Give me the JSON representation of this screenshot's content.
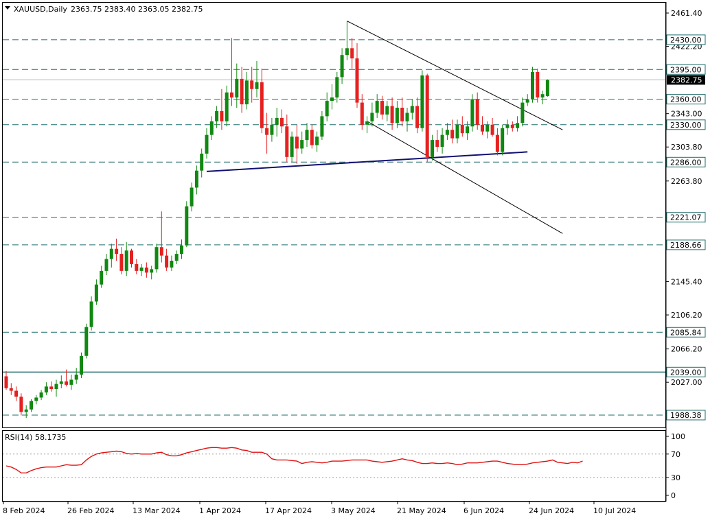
{
  "header": {
    "symbol": "XAUUSD,Daily",
    "ohlc": "2363.75 2383.40 2363.05 2382.75"
  },
  "rsi_header": {
    "label": "RSI(14) 58.1735"
  },
  "colors": {
    "bull": "#118811",
    "bear": "#e52020",
    "level": "#1f6b6b",
    "support": "#101070",
    "rsi": "#e01010",
    "grid": "#000000"
  },
  "chart_data": [
    {
      "type": "candlestick",
      "title": "XAUUSD,Daily",
      "ylim": [
        1975,
        2472
      ],
      "y_ticks": [
        "2461.40",
        "2422.20",
        "2343.00",
        "2303.80",
        "2263.80",
        "2145.40",
        "2106.20",
        "2066.20",
        "2027.00"
      ],
      "x_labels": [
        "8 Feb 2024",
        "26 Feb 2024",
        "13 Mar 2024",
        "1 Apr 2024",
        "17 Apr 2024",
        "3 May 2024",
        "21 May 2024",
        "6 Jun 2024",
        "24 Jun 2024",
        "10 Jul 2024"
      ],
      "current_price": "2382.75",
      "levels": [
        {
          "label": "2430.00",
          "value": 2430.0
        },
        {
          "label": "2395.00",
          "value": 2395.0
        },
        {
          "label": "2360.00",
          "value": 2360.0
        },
        {
          "label": "2330.00",
          "value": 2330.0
        },
        {
          "label": "2286.00",
          "value": 2286.0
        },
        {
          "label": "2221.07",
          "value": 2221.07
        },
        {
          "label": "2188.66",
          "value": 2188.66
        },
        {
          "label": "2085.84",
          "value": 2085.84
        },
        {
          "label": "2039.00",
          "value": 2039.0
        },
        {
          "label": "1988.38",
          "value": 1988.38
        }
      ],
      "candles": [
        [
          2034,
          2040,
          2018,
          2020
        ],
        [
          2020,
          2026,
          2012,
          2017
        ],
        [
          2017,
          2022,
          2005,
          2010
        ],
        [
          2010,
          2014,
          1988,
          1992
        ],
        [
          1992,
          2000,
          1985,
          1995
        ],
        [
          1995,
          2007,
          1992,
          2005
        ],
        [
          2005,
          2012,
          2001,
          2009
        ],
        [
          2009,
          2018,
          2006,
          2015
        ],
        [
          2015,
          2027,
          2012,
          2022
        ],
        [
          2022,
          2028,
          2016,
          2019
        ],
        [
          2019,
          2030,
          2010,
          2025
        ],
        [
          2025,
          2035,
          2020,
          2028
        ],
        [
          2028,
          2042,
          2022,
          2024
        ],
        [
          2024,
          2036,
          2018,
          2030
        ],
        [
          2030,
          2044,
          2025,
          2036
        ],
        [
          2036,
          2062,
          2032,
          2058
        ],
        [
          2058,
          2096,
          2055,
          2092
        ],
        [
          2092,
          2128,
          2088,
          2122
        ],
        [
          2122,
          2148,
          2118,
          2142
        ],
        [
          2142,
          2164,
          2138,
          2158
        ],
        [
          2158,
          2178,
          2153,
          2172
        ],
        [
          2172,
          2190,
          2162,
          2184
        ],
        [
          2184,
          2196,
          2170,
          2178
        ],
        [
          2178,
          2186,
          2154,
          2158
        ],
        [
          2158,
          2192,
          2152,
          2182
        ],
        [
          2182,
          2184,
          2162,
          2166
        ],
        [
          2166,
          2172,
          2154,
          2158
        ],
        [
          2158,
          2166,
          2152,
          2162
        ],
        [
          2162,
          2168,
          2150,
          2156
        ],
        [
          2156,
          2164,
          2148,
          2160
        ],
        [
          2160,
          2190,
          2156,
          2186
        ],
        [
          2186,
          2228,
          2168,
          2176
        ],
        [
          2176,
          2184,
          2158,
          2162
        ],
        [
          2162,
          2176,
          2158,
          2170
        ],
        [
          2170,
          2182,
          2166,
          2178
        ],
        [
          2178,
          2195,
          2172,
          2188
        ],
        [
          2188,
          2240,
          2186,
          2234
        ],
        [
          2234,
          2262,
          2228,
          2256
        ],
        [
          2256,
          2282,
          2248,
          2276
        ],
        [
          2276,
          2302,
          2268,
          2296
        ],
        [
          2296,
          2326,
          2290,
          2318
        ],
        [
          2318,
          2340,
          2312,
          2334
        ],
        [
          2334,
          2352,
          2326,
          2346
        ],
        [
          2346,
          2372,
          2324,
          2334
        ],
        [
          2334,
          2376,
          2328,
          2368
        ],
        [
          2368,
          2432,
          2352,
          2362
        ],
        [
          2362,
          2402,
          2350,
          2384
        ],
        [
          2384,
          2398,
          2344,
          2354
        ],
        [
          2354,
          2392,
          2348,
          2382
        ],
        [
          2382,
          2398,
          2356,
          2372
        ],
        [
          2372,
          2405,
          2362,
          2380
        ],
        [
          2380,
          2396,
          2320,
          2326
        ],
        [
          2326,
          2344,
          2296,
          2318
        ],
        [
          2318,
          2338,
          2310,
          2330
        ],
        [
          2330,
          2350,
          2316,
          2338
        ],
        [
          2338,
          2348,
          2320,
          2328
        ],
        [
          2328,
          2342,
          2286,
          2292
        ],
        [
          2292,
          2322,
          2286,
          2316
        ],
        [
          2316,
          2330,
          2284,
          2302
        ],
        [
          2302,
          2322,
          2296,
          2312
        ],
        [
          2312,
          2332,
          2304,
          2324
        ],
        [
          2324,
          2330,
          2302,
          2306
        ],
        [
          2306,
          2322,
          2298,
          2316
        ],
        [
          2316,
          2346,
          2312,
          2340
        ],
        [
          2340,
          2368,
          2334,
          2358
        ],
        [
          2358,
          2378,
          2348,
          2362
        ],
        [
          2362,
          2392,
          2356,
          2386
        ],
        [
          2386,
          2420,
          2378,
          2412
        ],
        [
          2412,
          2452,
          2406,
          2420
        ],
        [
          2420,
          2432,
          2396,
          2408
        ],
        [
          2408,
          2426,
          2350,
          2356
        ],
        [
          2356,
          2366,
          2324,
          2330
        ],
        [
          2330,
          2340,
          2320,
          2334
        ],
        [
          2334,
          2356,
          2328,
          2344
        ],
        [
          2344,
          2366,
          2338,
          2358
        ],
        [
          2358,
          2364,
          2336,
          2342
        ],
        [
          2342,
          2358,
          2334,
          2352
        ],
        [
          2352,
          2362,
          2324,
          2332
        ],
        [
          2332,
          2358,
          2326,
          2350
        ],
        [
          2350,
          2362,
          2328,
          2334
        ],
        [
          2334,
          2350,
          2322,
          2344
        ],
        [
          2344,
          2360,
          2336,
          2352
        ],
        [
          2352,
          2362,
          2320,
          2326
        ],
        [
          2326,
          2394,
          2322,
          2388
        ],
        [
          2388,
          2390,
          2286,
          2292
        ],
        [
          2292,
          2318,
          2288,
          2312
        ],
        [
          2312,
          2324,
          2298,
          2304
        ],
        [
          2304,
          2326,
          2296,
          2318
        ],
        [
          2318,
          2332,
          2312,
          2324
        ],
        [
          2324,
          2336,
          2308,
          2314
        ],
        [
          2314,
          2336,
          2308,
          2330
        ],
        [
          2330,
          2340,
          2316,
          2320
        ],
        [
          2320,
          2334,
          2312,
          2328
        ],
        [
          2328,
          2366,
          2322,
          2360
        ],
        [
          2360,
          2368,
          2324,
          2330
        ],
        [
          2330,
          2340,
          2318,
          2322
        ],
        [
          2322,
          2334,
          2314,
          2330
        ],
        [
          2330,
          2338,
          2316,
          2318
        ],
        [
          2318,
          2326,
          2294,
          2298
        ],
        [
          2298,
          2330,
          2294,
          2326
        ],
        [
          2326,
          2336,
          2318,
          2330
        ],
        [
          2330,
          2334,
          2322,
          2326
        ],
        [
          2326,
          2340,
          2322,
          2332
        ],
        [
          2332,
          2362,
          2328,
          2356
        ],
        [
          2356,
          2366,
          2352,
          2360
        ],
        [
          2360,
          2398,
          2356,
          2392
        ],
        [
          2392,
          2396,
          2356,
          2362
        ],
        [
          2362,
          2370,
          2354,
          2366
        ],
        [
          2363.75,
          2383.4,
          2363.05,
          2382.75
        ]
      ],
      "trendlines": [
        {
          "name": "channel-upper",
          "from": [
            68,
            2452
          ],
          "to": [
            111,
            2324
          ]
        },
        {
          "name": "channel-lower",
          "from": [
            72,
            2334
          ],
          "to": [
            111,
            2202
          ]
        },
        {
          "name": "support-line",
          "from": [
            40,
            2275
          ],
          "to": [
            104,
            2298
          ]
        }
      ]
    },
    {
      "type": "line",
      "title": "RSI(14) 58.1735",
      "ylim": [
        0,
        100
      ],
      "y_ticks": [
        "100",
        "70",
        "30",
        "0"
      ],
      "levels": [
        70,
        30
      ],
      "values": [
        50,
        48,
        44,
        38,
        38,
        42,
        45,
        47,
        48,
        48,
        48,
        50,
        52,
        51,
        51,
        52,
        60,
        66,
        70,
        72,
        73,
        74,
        75,
        74,
        71,
        70,
        71,
        70,
        70,
        70,
        72,
        73,
        69,
        67,
        67,
        69,
        72,
        74,
        76,
        78,
        80,
        81,
        81,
        80,
        80,
        81,
        80,
        77,
        76,
        73,
        73,
        73,
        70,
        62,
        60,
        60,
        60,
        59,
        58,
        54,
        56,
        57,
        56,
        55,
        56,
        58,
        58,
        58,
        59,
        60,
        60,
        60,
        60,
        58,
        57,
        56,
        57,
        58,
        60,
        62,
        60,
        59,
        56,
        54,
        54,
        55,
        54,
        54,
        55,
        54,
        52,
        53,
        55,
        55,
        55,
        56,
        57,
        58,
        58,
        56,
        54,
        53,
        52,
        52,
        53,
        55,
        56,
        57,
        58,
        60,
        56,
        55,
        54,
        56,
        55,
        58.17
      ]
    }
  ]
}
